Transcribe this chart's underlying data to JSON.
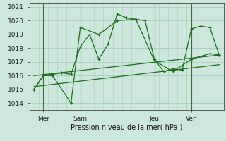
{
  "background_color": "#cce8dc",
  "grid_color": "#aacfbf",
  "line_color": "#1a6b1a",
  "xlabel": "Pression niveau de la mer( hPa )",
  "ylim": [
    1013.5,
    1021.3
  ],
  "yticks": [
    1014,
    1015,
    1016,
    1017,
    1018,
    1019,
    1020,
    1021
  ],
  "xtick_labels": [
    "Mer",
    "Sam",
    "Jeu",
    "Ven"
  ],
  "xtick_positions": [
    2,
    10,
    26,
    34
  ],
  "vlines": [
    2,
    10,
    26,
    34
  ],
  "series1": {
    "x": [
      0,
      2,
      4,
      6,
      8,
      10,
      12,
      14,
      16,
      18,
      20,
      22,
      24,
      26,
      28,
      30,
      32,
      34,
      36,
      38,
      40
    ],
    "y": [
      1015.0,
      1016.0,
      1016.1,
      1016.2,
      1016.1,
      1018.1,
      1019.0,
      1017.2,
      1018.3,
      1020.5,
      1020.2,
      1020.1,
      1020.0,
      1017.2,
      1016.3,
      1016.5,
      1016.4,
      1019.4,
      1019.6,
      1019.5,
      1017.5
    ]
  },
  "series2": {
    "x": [
      0,
      2,
      4,
      8,
      10,
      14,
      18,
      22,
      26,
      30,
      34,
      38,
      40
    ],
    "y": [
      1015.0,
      1016.0,
      1016.0,
      1014.0,
      1019.5,
      1019.0,
      1020.0,
      1020.1,
      1017.1,
      1016.3,
      1017.2,
      1017.6,
      1017.5
    ]
  },
  "series3": {
    "x": [
      0,
      40
    ],
    "y": [
      1016.0,
      1017.5
    ]
  },
  "series4": {
    "x": [
      0,
      40
    ],
    "y": [
      1015.2,
      1016.8
    ]
  }
}
